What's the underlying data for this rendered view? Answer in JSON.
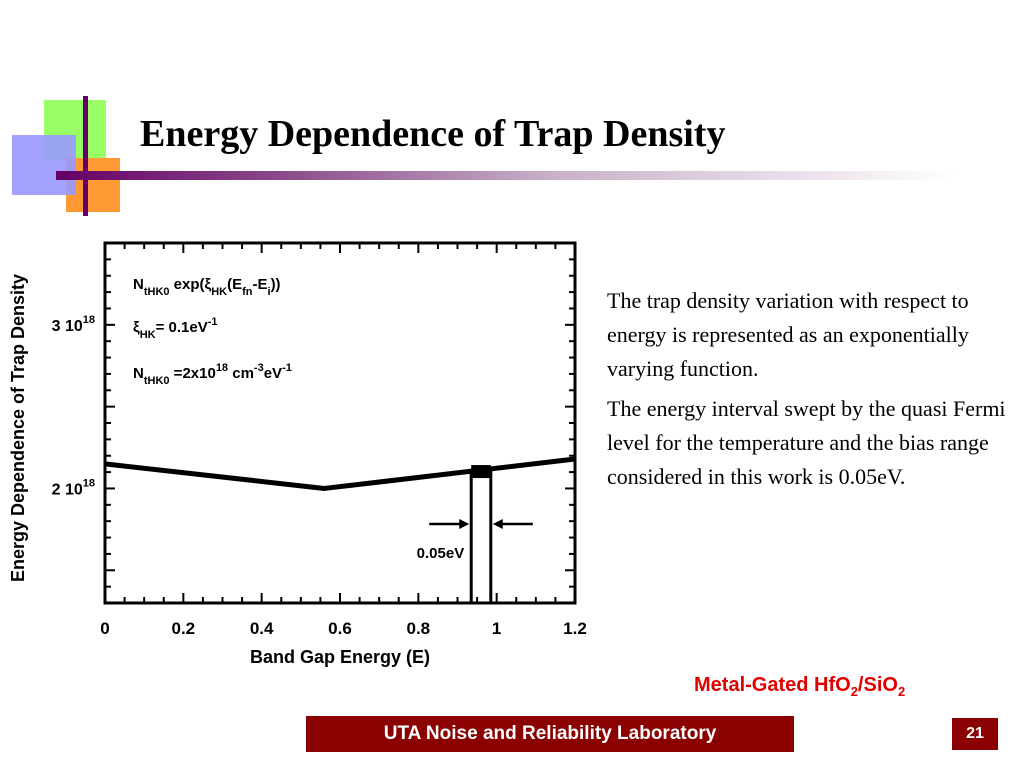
{
  "slide": {
    "title": "Energy Dependence of Trap Density",
    "material_prefix": "Metal-Gated HfO",
    "material_sub1": "2",
    "material_mid": "/SiO",
    "material_sub2": "2",
    "footer": "UTA Noise and Reliability Laboratory",
    "page_number": "21",
    "paragraphs": [
      "The trap density variation with respect to energy is represented as an exponentially varying function.",
      "The energy interval swept by the quasi Fermi level for the temperature and the bias range considered in this work is 0.05eV."
    ]
  },
  "colors": {
    "accent": "#8b0000",
    "material_text": "#e00000",
    "deco_green": "#99ff66",
    "deco_orange": "#ff9933",
    "deco_blue": "#9999ff",
    "deco_purple": "#660066"
  },
  "chart_data": {
    "type": "line",
    "xlabel": "Band Gap Energy (E)",
    "ylabel": "Energy Dependence of Trap Density",
    "xlim": [
      0,
      1.2
    ],
    "ylim": [
      1.3e+18,
      3.5e+18
    ],
    "x_ticks": [
      "0",
      "0.2",
      "0.4",
      "0.6",
      "0.8",
      "1",
      "1.2"
    ],
    "y_tick_values": [
      3e+18,
      2e+18
    ],
    "y_tick_labels": [
      {
        "mantissa": "3 10",
        "exponent": "18"
      },
      {
        "mantissa": "2 10",
        "exponent": "18"
      }
    ],
    "series": [
      {
        "x": [
          0,
          0.56,
          1.2
        ],
        "y": [
          2.15e+18,
          2e+18,
          2.18e+18
        ]
      }
    ],
    "sweep_interval": {
      "x_start": 0.935,
      "x_end": 0.985,
      "label": "0.05eV"
    },
    "formula": {
      "line1": [
        {
          "t": "N"
        },
        {
          "t": "tHK0",
          "s": "sub"
        },
        {
          "t": " exp("
        },
        {
          "t": "ξ"
        },
        {
          "t": "HK",
          "s": "sub"
        },
        {
          "t": "(E"
        },
        {
          "t": "fn",
          "s": "sub"
        },
        {
          "t": "-E"
        },
        {
          "t": "i",
          "s": "sub"
        },
        {
          "t": "))"
        }
      ],
      "line2": [
        {
          "t": "ξ"
        },
        {
          "t": "HK",
          "s": "sub"
        },
        {
          "t": "= 0.1eV"
        },
        {
          "t": "-1",
          "s": "sup"
        }
      ],
      "line3": [
        {
          "t": "N"
        },
        {
          "t": "tHK0",
          "s": "sub"
        },
        {
          "t": "  =2x10"
        },
        {
          "t": "18",
          "s": "sup"
        },
        {
          "t": " cm"
        },
        {
          "t": "-3",
          "s": "sup"
        },
        {
          "t": "eV"
        },
        {
          "t": "-1",
          "s": "sup"
        }
      ]
    }
  }
}
